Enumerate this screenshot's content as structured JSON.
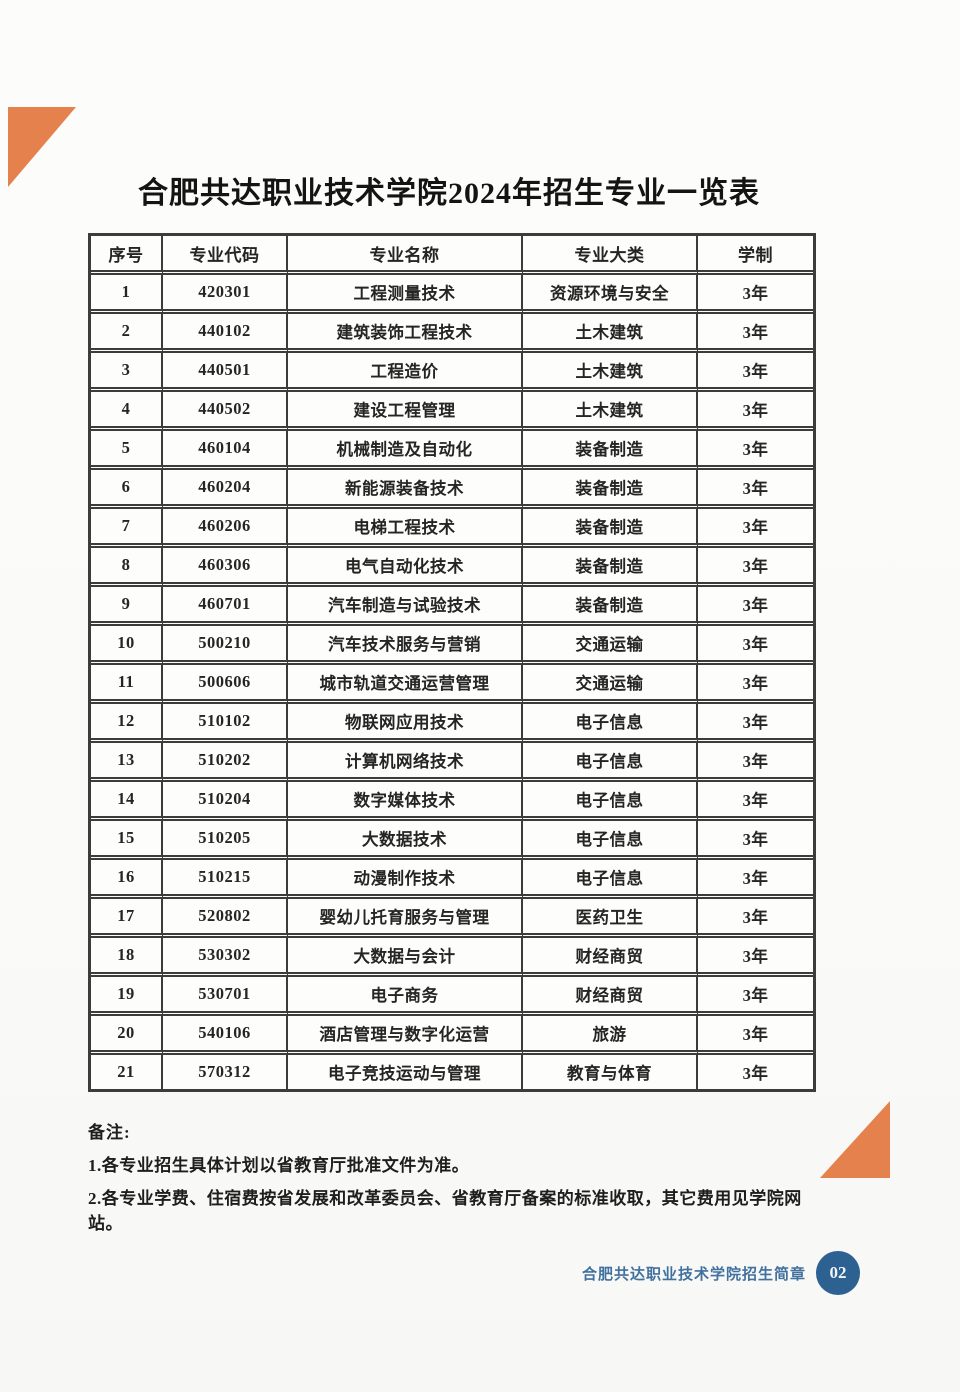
{
  "page": {
    "title": "合肥共达职业技术学院2024年招生专业一览表"
  },
  "table": {
    "headers": [
      "序号",
      "专业代码",
      "专业名称",
      "专业大类",
      "学制"
    ],
    "rows": [
      [
        "1",
        "420301",
        "工程测量技术",
        "资源环境与安全",
        "3年"
      ],
      [
        "2",
        "440102",
        "建筑装饰工程技术",
        "土木建筑",
        "3年"
      ],
      [
        "3",
        "440501",
        "工程造价",
        "土木建筑",
        "3年"
      ],
      [
        "4",
        "440502",
        "建设工程管理",
        "土木建筑",
        "3年"
      ],
      [
        "5",
        "460104",
        "机械制造及自动化",
        "装备制造",
        "3年"
      ],
      [
        "6",
        "460204",
        "新能源装备技术",
        "装备制造",
        "3年"
      ],
      [
        "7",
        "460206",
        "电梯工程技术",
        "装备制造",
        "3年"
      ],
      [
        "8",
        "460306",
        "电气自动化技术",
        "装备制造",
        "3年"
      ],
      [
        "9",
        "460701",
        "汽车制造与试验技术",
        "装备制造",
        "3年"
      ],
      [
        "10",
        "500210",
        "汽车技术服务与营销",
        "交通运输",
        "3年"
      ],
      [
        "11",
        "500606",
        "城市轨道交通运营管理",
        "交通运输",
        "3年"
      ],
      [
        "12",
        "510102",
        "物联网应用技术",
        "电子信息",
        "3年"
      ],
      [
        "13",
        "510202",
        "计算机网络技术",
        "电子信息",
        "3年"
      ],
      [
        "14",
        "510204",
        "数字媒体技术",
        "电子信息",
        "3年"
      ],
      [
        "15",
        "510205",
        "大数据技术",
        "电子信息",
        "3年"
      ],
      [
        "16",
        "510215",
        "动漫制作技术",
        "电子信息",
        "3年"
      ],
      [
        "17",
        "520802",
        "婴幼儿托育服务与管理",
        "医药卫生",
        "3年"
      ],
      [
        "18",
        "530302",
        "大数据与会计",
        "财经商贸",
        "3年"
      ],
      [
        "19",
        "530701",
        "电子商务",
        "财经商贸",
        "3年"
      ],
      [
        "20",
        "540106",
        "酒店管理与数字化运营",
        "旅游",
        "3年"
      ],
      [
        "21",
        "570312",
        "电子竞技运动与管理",
        "教育与体育",
        "3年"
      ]
    ]
  },
  "notes": {
    "label": "备注:",
    "items": [
      "1.各专业招生具体计划以省教育厅批准文件为准。",
      "2.各专业学费、住宿费按省发展和改革委员会、省教育厅备案的标准收取，其它费用见学院网站。"
    ]
  },
  "footer": {
    "text": "合肥共达职业技术学院招生简章",
    "page_number": "02"
  },
  "colors": {
    "accent_orange": "#e5814c",
    "footer_text_blue": "#41719f",
    "badge_blue": "#2d6191",
    "table_border": "#3c3c3c"
  }
}
